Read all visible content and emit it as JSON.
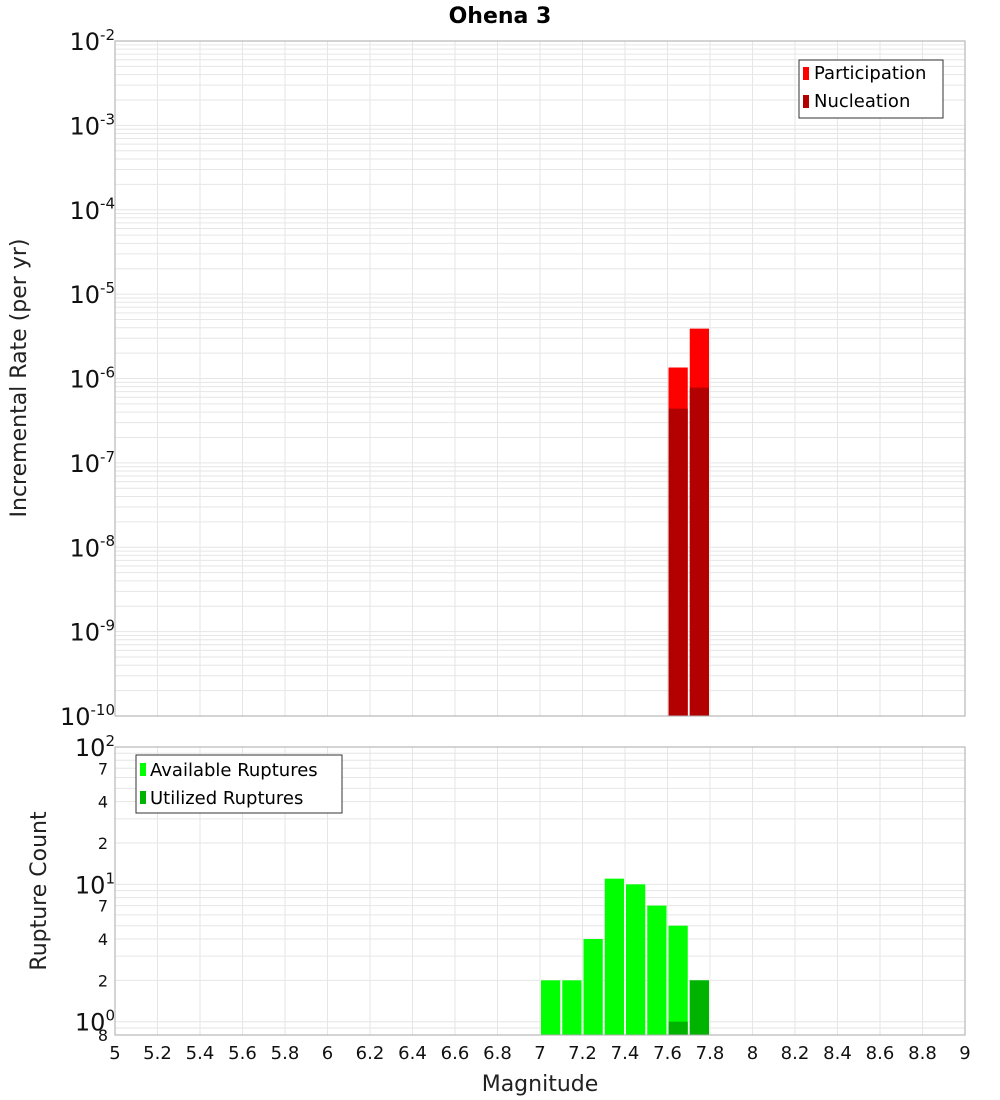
{
  "title": "Ohena 3",
  "xlabel": "Magnitude",
  "x_ticks": [
    "5",
    "5.2",
    "5.4",
    "5.6",
    "5.8",
    "6",
    "6.2",
    "6.4",
    "6.6",
    "6.8",
    "7",
    "7.2",
    "7.4",
    "7.6",
    "7.8",
    "8",
    "8.2",
    "8.4",
    "8.6",
    "8.8",
    "9"
  ],
  "top_y_ticks": [
    {
      "base": "10",
      "exp": "-2"
    },
    {
      "base": "10",
      "exp": "-3"
    },
    {
      "base": "10",
      "exp": "-4"
    },
    {
      "base": "10",
      "exp": "-5"
    },
    {
      "base": "10",
      "exp": "-6"
    },
    {
      "base": "10",
      "exp": "-7"
    },
    {
      "base": "10",
      "exp": "-8"
    },
    {
      "base": "10",
      "exp": "-9"
    },
    {
      "base": "10",
      "exp": "-10"
    }
  ],
  "bottom_y_major": [
    {
      "base": "10",
      "exp": "2"
    },
    {
      "base": "10",
      "exp": "1"
    },
    {
      "base": "10",
      "exp": "0"
    }
  ],
  "bottom_y_minor": [
    "7",
    "4",
    "2",
    "7",
    "4",
    "2",
    "8"
  ],
  "colors": {
    "participation": "#ff0000",
    "nucleation": "#b30000",
    "available": "#00ff00",
    "utilized": "#00b300",
    "grid": "#e6e6e6",
    "frame": "#aaaaaa"
  },
  "chart_data": [
    {
      "type": "bar",
      "ylabel": "Incremental Rate (per yr)",
      "yscale": "log",
      "ylim": [
        1e-10,
        0.01
      ],
      "xlim": [
        5,
        9
      ],
      "bin_width": 0.1,
      "legend_position": "top-right",
      "grid": true,
      "series": [
        {
          "name": "Participation",
          "x": [
            7.65,
            7.75
          ],
          "values": [
            1.35e-06,
            3.9e-06
          ]
        },
        {
          "name": "Nucleation",
          "x": [
            7.65,
            7.75
          ],
          "values": [
            4.4e-07,
            7.8e-07
          ]
        }
      ]
    },
    {
      "type": "bar",
      "ylabel": "Rupture Count",
      "yscale": "log",
      "ylim": [
        0.8,
        100
      ],
      "xlim": [
        5,
        9
      ],
      "bin_width": 0.1,
      "legend_position": "top-left",
      "grid": true,
      "series": [
        {
          "name": "Available Ruptures",
          "x": [
            7.05,
            7.15,
            7.25,
            7.35,
            7.45,
            7.55,
            7.65,
            7.75
          ],
          "values": [
            2,
            2,
            4,
            11,
            10,
            7,
            5,
            2
          ]
        },
        {
          "name": "Utilized Ruptures",
          "x": [
            7.65,
            7.75
          ],
          "values": [
            1,
            2
          ]
        }
      ]
    }
  ]
}
